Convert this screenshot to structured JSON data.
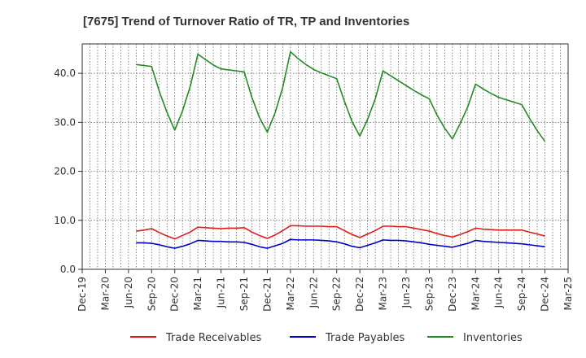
{
  "chart_data": {
    "type": "line",
    "title": "[7675]  Trend of Turnover Ratio of TR, TP and Inventories",
    "xlabel": "",
    "ylabel": "",
    "ylim": [
      0,
      46
    ],
    "yticks": [
      "0.0",
      "10.0",
      "20.0",
      "30.0",
      "40.0"
    ],
    "ytick_values": [
      0,
      10,
      20,
      30,
      40
    ],
    "xticks": [
      "Dec-19",
      "Mar-20",
      "Jun-20",
      "Sep-20",
      "Dec-20",
      "Mar-21",
      "Jun-21",
      "Sep-21",
      "Dec-21",
      "Mar-22",
      "Jun-22",
      "Sep-22",
      "Dec-22",
      "Mar-23",
      "Jun-23",
      "Sep-23",
      "Dec-23",
      "Mar-24",
      "Jun-24",
      "Sep-24",
      "Dec-24",
      "Mar-25"
    ],
    "grid": true,
    "legend_position": "bottom",
    "x": [
      "Jul-20",
      "Aug-20",
      "Sep-20",
      "Oct-20",
      "Nov-20",
      "Dec-20",
      "Jan-21",
      "Feb-21",
      "Mar-21",
      "Apr-21",
      "May-21",
      "Jun-21",
      "Jul-21",
      "Aug-21",
      "Sep-21",
      "Oct-21",
      "Nov-21",
      "Dec-21",
      "Jan-22",
      "Feb-22",
      "Mar-22",
      "Apr-22",
      "May-22",
      "Jun-22",
      "Jul-22",
      "Aug-22",
      "Sep-22",
      "Oct-22",
      "Nov-22",
      "Dec-22",
      "Jan-23",
      "Feb-23",
      "Mar-23",
      "Apr-23",
      "May-23",
      "Jun-23",
      "Jul-23",
      "Aug-23",
      "Sep-23",
      "Oct-23",
      "Nov-23",
      "Dec-23",
      "Jan-24",
      "Feb-24",
      "Mar-24",
      "Apr-24",
      "May-24",
      "Jun-24",
      "Jul-24",
      "Aug-24",
      "Sep-24",
      "Oct-24",
      "Nov-24",
      "Dec-24"
    ],
    "series": [
      {
        "name": "Trade Receivables",
        "color": "#e31a1c",
        "values": [
          7.8,
          8.0,
          8.3,
          7.5,
          6.8,
          6.2,
          6.9,
          7.6,
          8.6,
          8.5,
          8.4,
          8.3,
          8.4,
          8.4,
          8.5,
          7.6,
          6.9,
          6.3,
          7.0,
          7.9,
          8.9,
          8.9,
          8.8,
          8.8,
          8.8,
          8.7,
          8.7,
          7.9,
          7.1,
          6.5,
          7.2,
          7.9,
          8.8,
          8.8,
          8.7,
          8.7,
          8.4,
          8.1,
          7.8,
          7.3,
          6.9,
          6.6,
          7.1,
          7.7,
          8.4,
          8.2,
          8.1,
          8.0,
          8.0,
          8.0,
          8.0,
          7.6,
          7.2,
          6.8
        ]
      },
      {
        "name": "Trade Payables",
        "color": "#0000cc",
        "values": [
          5.4,
          5.4,
          5.3,
          5.0,
          4.6,
          4.3,
          4.7,
          5.2,
          5.9,
          5.8,
          5.7,
          5.7,
          5.6,
          5.6,
          5.5,
          5.1,
          4.6,
          4.3,
          4.8,
          5.3,
          6.1,
          6.0,
          6.0,
          6.0,
          5.9,
          5.8,
          5.6,
          5.2,
          4.7,
          4.4,
          4.9,
          5.4,
          6.0,
          5.9,
          5.9,
          5.8,
          5.6,
          5.4,
          5.1,
          4.9,
          4.7,
          4.5,
          4.9,
          5.3,
          5.9,
          5.7,
          5.6,
          5.5,
          5.4,
          5.3,
          5.2,
          5.0,
          4.8,
          4.6
        ]
      },
      {
        "name": "Inventories",
        "color": "#228b22",
        "values": [
          41.8,
          41.6,
          41.4,
          36.3,
          32.0,
          28.4,
          32.3,
          37.3,
          43.9,
          42.8,
          41.7,
          40.9,
          40.7,
          40.5,
          40.3,
          35.1,
          30.9,
          28.0,
          31.9,
          37.1,
          44.4,
          43.0,
          41.8,
          40.8,
          40.1,
          39.5,
          38.9,
          34.3,
          30.1,
          27.2,
          30.6,
          34.8,
          40.5,
          39.5,
          38.5,
          37.5,
          36.5,
          35.6,
          34.8,
          31.5,
          28.8,
          26.6,
          29.7,
          33.2,
          37.8,
          36.8,
          35.9,
          35.1,
          34.6,
          34.1,
          33.6,
          30.8,
          28.3,
          26.1
        ]
      }
    ]
  }
}
